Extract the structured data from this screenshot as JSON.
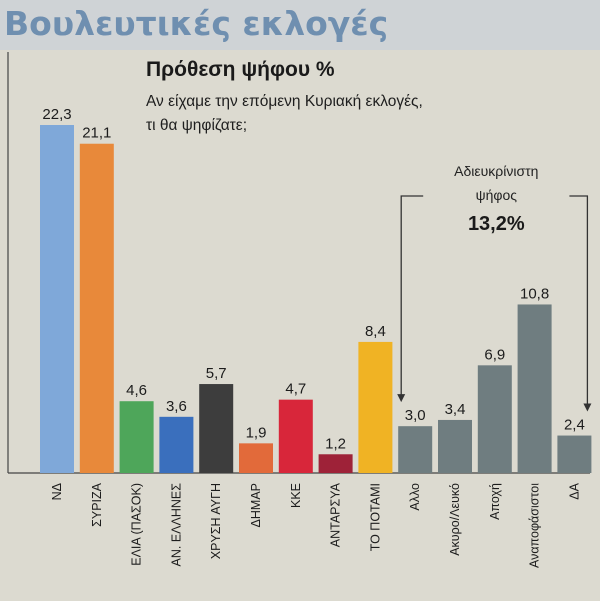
{
  "header": {
    "title": "Βουλευτικές εκλογές"
  },
  "chart_data": {
    "type": "bar",
    "title": "Πρόθεση ψήφου %",
    "subtitle_lines": [
      "Αν είχαμε την επόμενη Κυριακή εκλογές,",
      "τι θα ψηφίζατε;"
    ],
    "categories": [
      "ΝΔ",
      "ΣΥΡΙΖΑ",
      "ΕΛΙΑ (ΠΑΣΟΚ)",
      "ΑΝ. ΕΛΛΗΝΕΣ",
      "ΧΡΥΣΗ ΑΥΓΗ",
      "ΔΗΜΑΡ",
      "ΚΚΕ",
      "ΑΝΤΑΡΣΥΑ",
      "ΤΟ ΠΟΤΑΜΙ",
      "Αλλο",
      "Ακυρο/Λευκό",
      "Αποχή",
      "Αναποφάσιστοι",
      "ΔΑ"
    ],
    "values": [
      22.3,
      21.1,
      4.6,
      3.6,
      5.7,
      1.9,
      4.7,
      1.2,
      8.4,
      3.0,
      3.4,
      6.9,
      10.8,
      2.4
    ],
    "value_labels": [
      "22,3",
      "21,1",
      "4,6",
      "3,6",
      "5,7",
      "1,9",
      "4,7",
      "1,2",
      "8,4",
      "3,0",
      "3,4",
      "6,9",
      "10,8",
      "2,4"
    ],
    "colors": [
      "#7fa8d9",
      "#e8893a",
      "#4ea65a",
      "#3a6fbd",
      "#3d3d3d",
      "#e26a3a",
      "#d8263a",
      "#9e2238",
      "#f0b324",
      "#6f7d80",
      "#6f7d80",
      "#6f7d80",
      "#6f7d80",
      "#6f7d80"
    ],
    "ylim": [
      0,
      23
    ],
    "annotation": {
      "label_lines": [
        "Αδιευκρίνιστη",
        "ψήφος"
      ],
      "value": "13,2%",
      "from_category": "Αλλο",
      "to_category": "ΔΑ"
    }
  }
}
